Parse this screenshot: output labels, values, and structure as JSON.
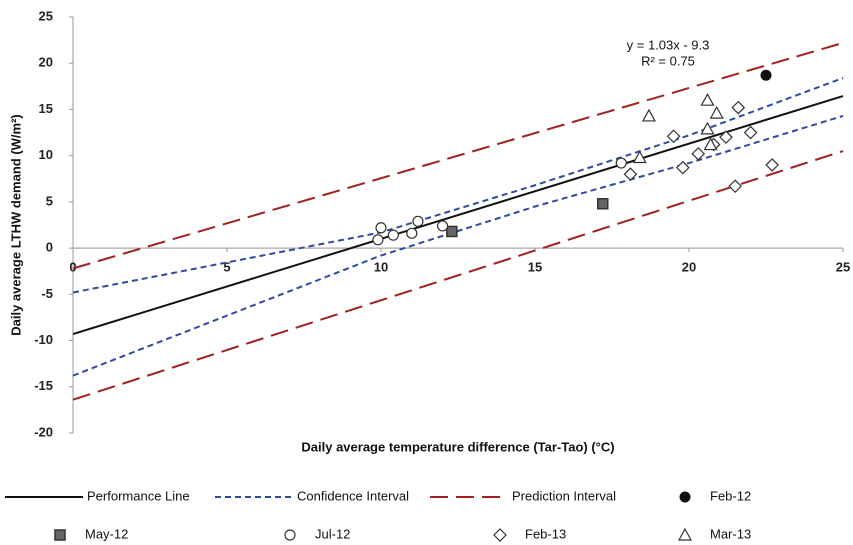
{
  "chart_data": {
    "type": "scatter",
    "xlabel": "Daily average temperature difference (Tar-Tao) (°C)",
    "ylabel": "Daily average LTHW demand (W/m²)",
    "annotations": [
      "y = 1.03x - 9.3",
      "R² = 0.75"
    ],
    "xlim": [
      0,
      25
    ],
    "xticks": [
      0,
      5,
      10,
      15,
      20,
      25
    ],
    "ylim": [
      -20,
      25
    ],
    "yticks": [
      -20,
      -15,
      -10,
      -5,
      0,
      5,
      10,
      15,
      20,
      25
    ],
    "series": [
      {
        "name": "Performance Line",
        "type": "line",
        "color": "#111111",
        "dash": "solid",
        "x": [
          0,
          25
        ],
        "values": [
          -9.3,
          16.45
        ]
      },
      {
        "name": "Confidence Interval",
        "type": "line",
        "color": "#2f4b9c",
        "dash": "short",
        "x": [
          0,
          10,
          15,
          20,
          25
        ],
        "values": [
          -4.8,
          1.7,
          6.8,
          12.2,
          18.4
        ]
      },
      {
        "name": null,
        "type": "line",
        "color": "#2f4b9c",
        "dash": "short",
        "x": [
          0,
          10,
          15,
          20,
          25
        ],
        "values": [
          -13.8,
          -0.8,
          4.5,
          9.2,
          14.3
        ]
      },
      {
        "name": "Prediction Interval",
        "type": "line",
        "color": "#a0221e",
        "dash": "long",
        "x": [
          0,
          25
        ],
        "values": [
          -2.2,
          22.2
        ]
      },
      {
        "name": null,
        "type": "line",
        "color": "#a0221e",
        "dash": "long",
        "x": [
          0,
          25
        ],
        "values": [
          -16.4,
          10.5
        ]
      },
      {
        "name": "Feb-12",
        "type": "scatter",
        "marker": "filled-circle",
        "color": "#111111",
        "x": [
          22.5
        ],
        "values": [
          18.7
        ]
      },
      {
        "name": "May-12",
        "type": "scatter",
        "marker": "square",
        "color": "#333333",
        "x": [
          12.3,
          17.2
        ],
        "values": [
          1.8,
          4.8
        ]
      },
      {
        "name": "Jul-12",
        "type": "scatter",
        "marker": "circle",
        "color": "#333333",
        "x": [
          10,
          9.9,
          10.4,
          11,
          11.2,
          12,
          17.8
        ],
        "values": [
          2.2,
          0.9,
          1.4,
          1.6,
          2.9,
          2.4,
          9.2
        ]
      },
      {
        "name": "Feb-13",
        "type": "scatter",
        "marker": "diamond",
        "color": "#333333",
        "x": [
          18.1,
          19.5,
          19.8,
          20.3,
          21.2,
          21.5,
          21.6,
          22,
          22.7,
          20.8
        ],
        "values": [
          8,
          12.1,
          8.7,
          10.2,
          12,
          6.7,
          15.2,
          12.5,
          9,
          11.2
        ]
      },
      {
        "name": "Mar-13",
        "type": "scatter",
        "marker": "triangle",
        "color": "#333333",
        "x": [
          18.7,
          18.4,
          20.6,
          20.6,
          20.9,
          20.7
        ],
        "values": [
          14.3,
          9.8,
          16,
          12.9,
          14.6,
          11.2
        ]
      }
    ]
  }
}
